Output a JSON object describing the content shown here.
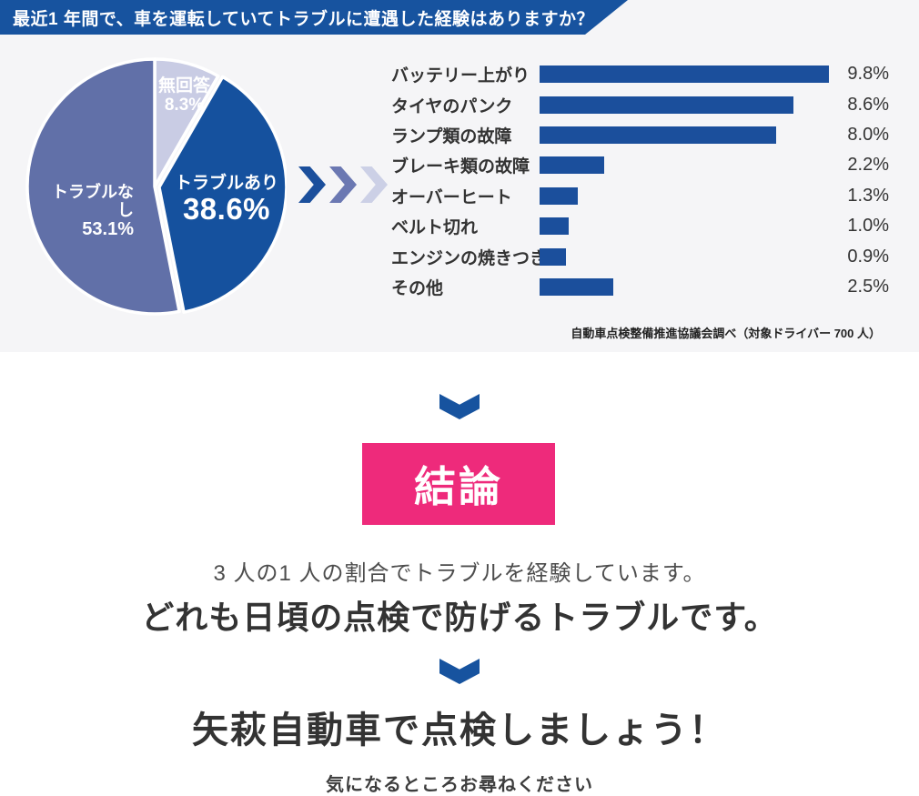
{
  "header": {
    "title": "最近1 年間で、車を運転していてトラブルに遭遇した経験はありますか？"
  },
  "colors": {
    "brand_blue": "#17539f",
    "bar_blue": "#1b4f9c",
    "pie_yes_blue": "#15519e",
    "pie_no_purple": "#6170a8",
    "pie_noanswer_lavender": "#c9cce4",
    "chevron_mid_purple": "#6b78b2",
    "chevron_light_lavender": "#ccd0e6",
    "conclusion_pink": "#ee2a7b",
    "section_bg_gray": "#f5f5f7"
  },
  "chart_data": [
    {
      "type": "pie",
      "title": "最近1 年間で、車を運転していてトラブルに遭遇した経験はありますか？",
      "start_angle_deg": 0,
      "direction": "clockwise",
      "segments": [
        {
          "label": "無回答",
          "value": 8.3,
          "display_value": "8.3%",
          "color": "#c9cce4",
          "offset": 0
        },
        {
          "label": "トラブルあり",
          "value": 38.6,
          "display_value": "38.6%",
          "color": "#15519e",
          "offset": 5
        },
        {
          "label": "トラブルなし",
          "value": 53.1,
          "display_value": "53.1%",
          "color": "#6170a8",
          "offset": 0
        }
      ]
    },
    {
      "type": "bar",
      "orientation": "horizontal",
      "categories": [
        "バッテリー上がり",
        "タイヤのパンク",
        "ランプ類の故障",
        "ブレーキ類の故障",
        "オーバーヒート",
        "ベルト切れ",
        "エンジンの焼きつき",
        "その他"
      ],
      "values": [
        9.8,
        8.6,
        8.0,
        2.2,
        1.3,
        1.0,
        0.9,
        2.5
      ],
      "value_suffix": "%",
      "xlim": [
        0,
        9.8
      ],
      "bar_color": "#1b4f9c",
      "grid": false,
      "legend": false
    }
  ],
  "source_note": "自動車点検整備推進協議会調べ（対象ドライバー 700 人）",
  "conclusion": {
    "badge": "結論",
    "line1": "3 人の1 人の割合でトラブルを経験しています。",
    "line2": "どれも日頃の点検で防げるトラブルです。"
  },
  "cta": {
    "line1": "矢萩自動車で点検しましょう！",
    "line2": "気になるところお尋ねください"
  }
}
